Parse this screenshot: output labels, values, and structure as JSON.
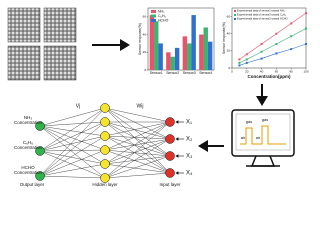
{
  "bar_chart": {
    "ylabel": "Sensor response(%)",
    "categories": [
      "Sensor1",
      "Sensor2",
      "Sensor3",
      "Sensor4"
    ],
    "series": [
      {
        "name": "NH₃",
        "color": "#e8536b",
        "values": [
          62,
          20,
          38,
          40
        ]
      },
      {
        "name": "C₆H₆",
        "color": "#3cb371",
        "values": [
          55,
          15,
          30,
          48
        ]
      },
      {
        "name": "HCHO",
        "color": "#2f6fd0",
        "values": [
          30,
          25,
          62,
          32
        ]
      }
    ],
    "ylim": [
      0,
      70
    ],
    "yticks": [
      0,
      20,
      40,
      60
    ]
  },
  "line_chart": {
    "xlabel": "Concentration(ppm)",
    "ylabel": "Sensor response(%)",
    "xlim": [
      0,
      100
    ],
    "ylim": [
      0,
      70
    ],
    "xticks": [
      0,
      20,
      40,
      60,
      80,
      100
    ],
    "yticks": [
      0,
      20,
      40,
      60
    ],
    "x": [
      10,
      20,
      40,
      60,
      80,
      100
    ],
    "series": [
      {
        "name": "Experimental data of sensor1 toward NH₃",
        "color": "#e8536b",
        "values": [
          10,
          16,
          28,
          40,
          52,
          64
        ]
      },
      {
        "name": "Experimental data of sensor3 toward C₆H₆",
        "color": "#3cb371",
        "values": [
          6,
          10,
          19,
          28,
          37,
          46
        ]
      },
      {
        "name": "Experimental data of sensor2 toward HCHO",
        "color": "#2f6fd0",
        "values": [
          3,
          6,
          11,
          17,
          22,
          28
        ]
      }
    ]
  },
  "monitor": {
    "labels": [
      "gas",
      "gas",
      "air",
      "air"
    ]
  },
  "network": {
    "outputs": [
      [
        "NH₃",
        "Concentration"
      ],
      [
        "C₆H₆",
        "Concentration"
      ],
      [
        "HCHO",
        "Concentration"
      ]
    ],
    "inputs": [
      "X₁",
      "X₂",
      "X₃",
      "X₄"
    ],
    "weights": [
      "Vj",
      "Wij"
    ],
    "layers": [
      "Output layer",
      "Hidden layer",
      "Input layer"
    ]
  }
}
